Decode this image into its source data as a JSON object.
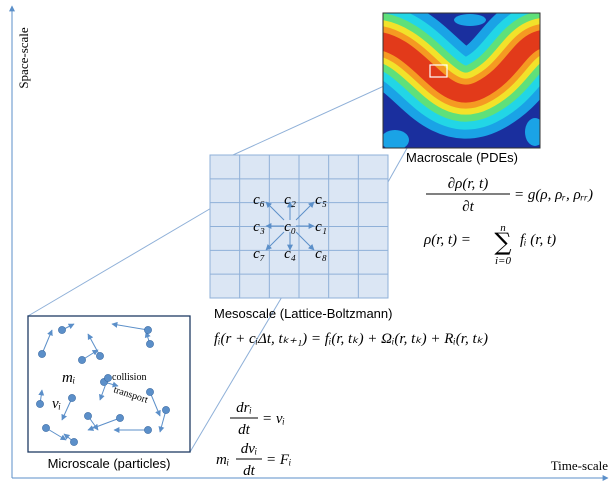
{
  "axes": {
    "y_label": "Space-scale",
    "x_label": "Time-scale"
  },
  "macroscale": {
    "label": "Macroscale (PDEs)",
    "equation_1": {
      "numerator": "∂ρ(r, t)",
      "denominator": "∂t",
      "rhs": "= g(ρ, ρᵣ, ρᵣᵣ)"
    },
    "equation_2": {
      "lhs": "ρ(r, t) =",
      "sum": "∑",
      "upper": "n",
      "lower": "i=0",
      "rhs": "fᵢ (r, t)"
    }
  },
  "mesoscale": {
    "label": "Mesoscale (Lattice-Boltzmann)",
    "velocities": [
      "c₀",
      "c₁",
      "c₂",
      "c₃",
      "c₄",
      "c₅",
      "c₆",
      "c₇",
      "c₈"
    ],
    "equation": "fᵢ(r + cᵢΔt, tₖ₊₁) = fᵢ(r, tₖ) + Ωᵢ(r, tₖ) + Rᵢ(r, tₖ)"
  },
  "microscale": {
    "label": "Microscale (particles)",
    "mass": "mᵢ",
    "velocity": "vᵢ",
    "collision": "collision",
    "transport": "transport",
    "equation_1": {
      "numerator": "drᵢ",
      "denominator": "dt",
      "rhs": "= vᵢ"
    },
    "equation_2": {
      "lhs": "mᵢ",
      "numerator": "dvᵢ",
      "denominator": "dt",
      "rhs": "= Fᵢ"
    }
  }
}
